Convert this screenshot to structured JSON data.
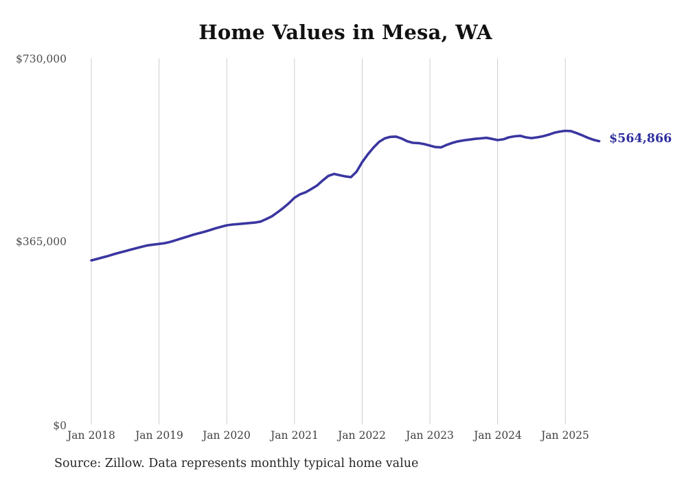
{
  "title": "Home Values in Mesa, WA",
  "source_note": "Source: Zillow. Data represents monthly typical home value",
  "end_label": "$564,866",
  "colors": {
    "line": "#3a36a0",
    "end_label_text": "#2e2e9e",
    "gridline": "#cccccc",
    "title_text": "#111111",
    "axis_label_text": "#4d4d4d",
    "background": "#ffffff"
  },
  "chart_data": {
    "type": "line",
    "title": "Home Values in Mesa, WA",
    "series_name": "Monthly typical home value",
    "frequency": "monthly",
    "x_start": "2018-01",
    "x_end": "2025-07",
    "xlabel": "",
    "ylabel": "",
    "ylim": [
      0,
      730000
    ],
    "grid": "vertical-only",
    "legend": "none",
    "y_tick_labels": [
      "$730,000",
      "$365,000",
      "$0"
    ],
    "y_tick_values": [
      730000,
      365000,
      0
    ],
    "x_tick_labels": [
      "Jan 2018",
      "Jan 2019",
      "Jan 2020",
      "Jan 2021",
      "Jan 2022",
      "Jan 2023",
      "Jan 2024",
      "Jan 2025"
    ],
    "end_value": 564866,
    "values": [
      327000,
      330000,
      333000,
      336000,
      339500,
      342500,
      345500,
      348500,
      351500,
      354500,
      357000,
      358500,
      360000,
      361500,
      364000,
      367500,
      371000,
      374500,
      378000,
      381000,
      384000,
      387500,
      391000,
      394000,
      397000,
      398500,
      399500,
      400500,
      401500,
      402500,
      404500,
      409500,
      415000,
      423000,
      431500,
      441000,
      452000,
      459000,
      463000,
      469500,
      476500,
      486500,
      495500,
      499500,
      497000,
      494500,
      493000,
      504000,
      523000,
      538500,
      552000,
      563500,
      570500,
      573500,
      574000,
      570000,
      564500,
      561500,
      561000,
      559000,
      556000,
      553000,
      552500,
      557500,
      561500,
      564500,
      566500,
      568000,
      569500,
      570500,
      571500,
      569500,
      567000,
      568500,
      572500,
      574500,
      575500,
      572500,
      571000,
      572500,
      574500,
      577500,
      581500,
      584000,
      585500,
      585000,
      581000,
      576500,
      571500,
      567500,
      564866
    ]
  }
}
